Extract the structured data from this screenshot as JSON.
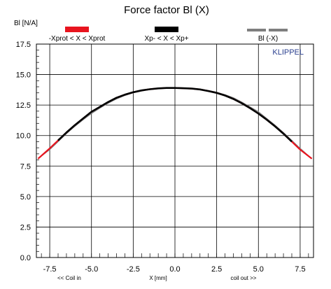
{
  "chart_data": {
    "type": "line",
    "title": "Force factor Bl (X)",
    "ylabel": "Bl [N/A]",
    "xlabel": "X [mm]",
    "xlabel_left": "<< Coil in",
    "xlabel_right": "coil out >>",
    "watermark": "KLIPPEL",
    "xlim": [
      -8.3,
      8.3
    ],
    "ylim": [
      0,
      17.5
    ],
    "xticks": [
      -7.5,
      -5.0,
      -2.5,
      0.0,
      2.5,
      5.0,
      7.5
    ],
    "xtick_labels": [
      "-7.5",
      "-5.0",
      "-2.5",
      "0.0",
      "2.5",
      "5.0",
      "7.5"
    ],
    "yticks": [
      0,
      2.5,
      5.0,
      7.5,
      10.0,
      12.5,
      15.0,
      17.5
    ],
    "ytick_labels": [
      "0.0",
      "2.5",
      "5.0",
      "7.5",
      "10.0",
      "12.5",
      "15.0",
      "17.5"
    ],
    "grid": true,
    "legend_position": "top",
    "colors": {
      "red": "#e8141e",
      "black": "#000000",
      "gray": "#7f7f7f",
      "grid": "#000000"
    },
    "series": [
      {
        "name": "-Xprot < X < Xprot",
        "color": "#e8141e",
        "x": [
          -8.2,
          -7.5,
          -7.0,
          -6.5,
          -6.0,
          -5.5,
          -5.0,
          -4.5,
          -4.0,
          -3.5,
          -3.0,
          -2.5,
          -2.0,
          -1.5,
          -1.0,
          -0.5,
          0.0,
          0.5,
          1.0,
          1.5,
          2.0,
          2.5,
          3.0,
          3.5,
          4.0,
          4.5,
          5.0,
          5.5,
          6.0,
          6.5,
          7.0,
          7.5,
          8.2
        ],
        "y": [
          8.1,
          8.95,
          9.6,
          10.25,
          10.85,
          11.4,
          11.95,
          12.35,
          12.75,
          13.1,
          13.35,
          13.55,
          13.7,
          13.8,
          13.87,
          13.9,
          13.9,
          13.88,
          13.85,
          13.78,
          13.65,
          13.5,
          13.28,
          13.0,
          12.65,
          12.25,
          11.8,
          11.3,
          10.75,
          10.15,
          9.5,
          8.85,
          8.1
        ]
      },
      {
        "name": "Xp- < X < Xp+",
        "color": "#000000",
        "x": [
          -7.0,
          -6.5,
          -6.0,
          -5.5,
          -5.0,
          -4.5,
          -4.0,
          -3.5,
          -3.0,
          -2.5,
          -2.0,
          -1.5,
          -1.0,
          -0.5,
          0.0,
          0.5,
          1.0,
          1.5,
          2.0,
          2.5,
          3.0,
          3.5,
          4.0,
          4.5,
          5.0,
          5.5,
          6.0,
          6.5,
          7.0
        ],
        "y": [
          9.6,
          10.25,
          10.85,
          11.4,
          11.95,
          12.35,
          12.75,
          13.1,
          13.35,
          13.55,
          13.7,
          13.8,
          13.87,
          13.9,
          13.9,
          13.88,
          13.85,
          13.78,
          13.65,
          13.5,
          13.28,
          13.0,
          12.65,
          12.25,
          11.8,
          11.3,
          10.75,
          10.15,
          9.5
        ]
      },
      {
        "name": "Bl (-X)",
        "color": "#7f7f7f",
        "x": [
          -8.2,
          -7.5,
          -7.0,
          -6.5,
          -6.0,
          -5.5,
          -5.0,
          -4.5,
          -4.0,
          -3.5,
          -3.0,
          -2.5,
          -2.0,
          -1.5,
          -1.0,
          -0.5,
          0.0,
          0.5,
          1.0,
          1.5,
          2.0,
          2.5,
          3.0,
          3.5,
          4.0,
          4.5,
          5.0,
          5.5,
          6.0,
          6.5,
          7.0,
          7.5,
          8.2
        ],
        "y": [
          8.1,
          8.85,
          9.5,
          10.15,
          10.75,
          11.3,
          11.8,
          12.25,
          12.65,
          13.0,
          13.28,
          13.5,
          13.65,
          13.78,
          13.85,
          13.88,
          13.9,
          13.9,
          13.87,
          13.8,
          13.7,
          13.55,
          13.35,
          13.1,
          12.75,
          12.35,
          11.95,
          11.4,
          10.85,
          10.25,
          9.6,
          8.95,
          8.1
        ]
      }
    ]
  }
}
